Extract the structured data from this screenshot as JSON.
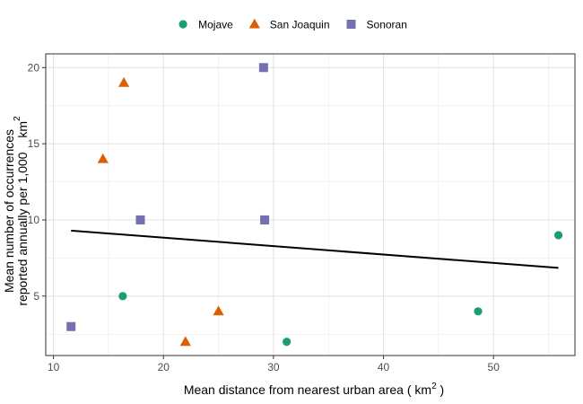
{
  "chart_data": {
    "type": "scatter",
    "title": "",
    "xlabel": "Mean distance from nearest urban area ( km",
    "xlabel_sup": "2",
    "xlabel_end": " )",
    "ylabel_line1": "Mean number of occurrences",
    "ylabel_line2": "reported annually per 1,000",
    "ylabel_unit": "km",
    "ylabel_sup": "2",
    "xlim": [
      9.3,
      57.4
    ],
    "ylim": [
      1.1,
      20.9
    ],
    "xticks": [
      10,
      20,
      30,
      40,
      50
    ],
    "yticks": [
      5,
      10,
      15,
      20
    ],
    "grid": true,
    "legend_position": "top",
    "series": [
      {
        "name": "Mojave",
        "marker": "circle",
        "color": "#1b9e77",
        "points": [
          [
            16.3,
            5
          ],
          [
            31.2,
            2
          ],
          [
            48.6,
            4
          ],
          [
            55.9,
            9
          ]
        ]
      },
      {
        "name": "San Joaquin",
        "marker": "triangle",
        "color": "#d95f02",
        "points": [
          [
            14.5,
            14
          ],
          [
            16.4,
            19
          ],
          [
            22,
            2
          ],
          [
            25,
            4
          ]
        ]
      },
      {
        "name": "Sonoran",
        "marker": "square",
        "color": "#7570b3",
        "points": [
          [
            11.6,
            3
          ],
          [
            17.9,
            10
          ],
          [
            29.1,
            20
          ],
          [
            29.2,
            10
          ]
        ]
      }
    ],
    "trend_line": {
      "color": "#000000",
      "x": [
        11.6,
        55.9
      ],
      "y": [
        9.3,
        6.85
      ]
    }
  }
}
